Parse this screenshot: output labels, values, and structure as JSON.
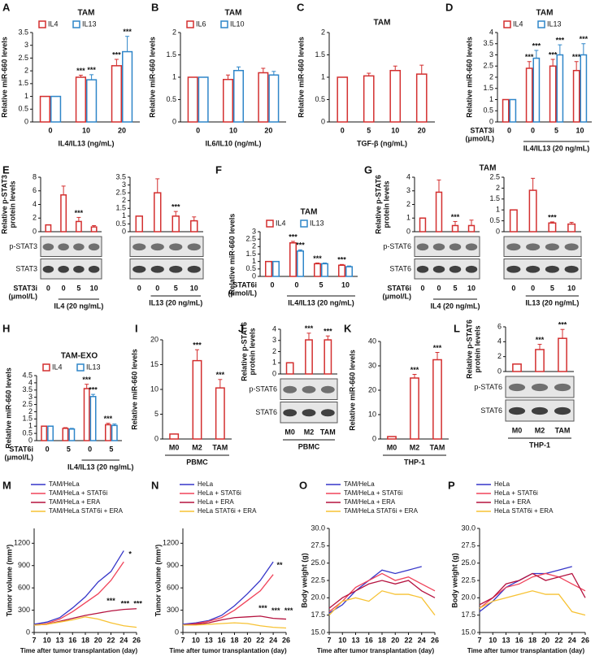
{
  "chart_data": [
    {
      "letter": "A",
      "title": "TAM",
      "type": "bar",
      "categories": [
        "0",
        "10",
        "20"
      ],
      "xlabel": "IL4/IL13  (ng/mL)",
      "ylabel": "Relative miR-660 levels",
      "ylim": [
        0,
        3.5
      ],
      "yticks": [
        0,
        0.5,
        1,
        1.5,
        2,
        2.5,
        3,
        3.5
      ],
      "series": [
        {
          "name": "IL4",
          "color": "#d32f2f",
          "values": [
            1,
            1.75,
            2.2
          ],
          "errors": [
            0,
            0.08,
            0.25
          ],
          "stars": [
            null,
            "***",
            "***"
          ]
        },
        {
          "name": "IL13",
          "color": "#2f86c9",
          "values": [
            1,
            1.65,
            2.75
          ],
          "errors": [
            0,
            0.2,
            0.6
          ],
          "stars": [
            null,
            "***",
            "***"
          ]
        }
      ]
    },
    {
      "letter": "B",
      "title": "TAM",
      "type": "bar",
      "categories": [
        "0",
        "10",
        "20"
      ],
      "xlabel": "IL6/IL10  (ng/mL)",
      "ylabel": "Relative miR-660 levels",
      "ylim": [
        0,
        2
      ],
      "yticks": [
        0,
        0.5,
        1,
        1.5,
        2
      ],
      "series": [
        {
          "name": "IL6",
          "color": "#d32f2f",
          "values": [
            1,
            0.95,
            1.1
          ],
          "errors": [
            0,
            0.1,
            0.1
          ]
        },
        {
          "name": "IL10",
          "color": "#2f86c9",
          "values": [
            1,
            1.15,
            1.05
          ],
          "errors": [
            0,
            0.08,
            0.08
          ]
        }
      ]
    },
    {
      "letter": "C",
      "title": "TAM",
      "type": "bar",
      "categories": [
        "0",
        "5",
        "10",
        "20"
      ],
      "xlabel": "TGF-β  (ng/mL)",
      "ylabel": "Relative miR-660 levels",
      "ylim": [
        0,
        2
      ],
      "yticks": [
        0,
        0.5,
        1,
        1.5,
        2
      ],
      "series": [
        {
          "color": "#d32f2f",
          "values": [
            1,
            1.03,
            1.15,
            1.07
          ],
          "errors": [
            0,
            0.06,
            0.1,
            0.2
          ]
        }
      ]
    },
    {
      "letter": "D",
      "title": "TAM",
      "type": "bar",
      "categories": [
        "0",
        "0",
        "5",
        "10"
      ],
      "row_label": [
        "STAT3i",
        "(μmol/L)"
      ],
      "group_label": "IL4/IL13 (20 ng/mL)",
      "ylabel": "Relative miR-660 levels",
      "ylim": [
        0,
        4
      ],
      "yticks": [
        0,
        0.5,
        1,
        1.5,
        2,
        2.5,
        3,
        3.5,
        4
      ],
      "series": [
        {
          "name": "IL4",
          "color": "#d32f2f",
          "values": [
            1,
            2.4,
            2.5,
            2.3
          ],
          "errors": [
            0,
            0.3,
            0.3,
            0.4
          ],
          "stars": [
            null,
            "***",
            "***",
            "***"
          ]
        },
        {
          "name": "IL13",
          "color": "#2f86c9",
          "values": [
            1,
            2.85,
            3.0,
            3.0
          ],
          "errors": [
            0,
            0.35,
            0.45,
            0.5
          ],
          "stars": [
            null,
            "***",
            "***",
            "***"
          ]
        }
      ]
    },
    {
      "letter": "E",
      "type": "bar",
      "categories": [
        "0",
        "0",
        "5",
        "10"
      ],
      "row_label": [
        "STAT3i",
        "(μmol/L)"
      ],
      "group_label": "IL4 (20 ng/mL)",
      "ylabel": [
        "Relative p-STAT3",
        "protein levels"
      ],
      "ylim": [
        0,
        8
      ],
      "yticks": [
        0,
        2,
        4,
        6,
        8
      ],
      "blot_labels": [
        "p-STAT3",
        "STAT3"
      ],
      "series": [
        {
          "color": "#d32f2f",
          "values": [
            1,
            5.4,
            1.5,
            0.7
          ],
          "errors": [
            0,
            1.3,
            0.6,
            0.2
          ],
          "stars": [
            null,
            null,
            "***",
            null
          ]
        }
      ]
    },
    {
      "type": "bar",
      "categories": [
        "0",
        "0",
        "5",
        "10"
      ],
      "group_label": "IL13 (20 ng/mL)",
      "ylim": [
        0,
        3.5
      ],
      "yticks": [
        0,
        0.5,
        1,
        1.5,
        2,
        2.5,
        3,
        3.5
      ],
      "series": [
        {
          "color": "#d32f2f",
          "values": [
            1,
            2.5,
            1.0,
            0.7
          ],
          "errors": [
            0,
            0.9,
            0.3,
            0.25
          ],
          "stars": [
            null,
            null,
            "***",
            null
          ]
        }
      ]
    },
    {
      "letter": "F",
      "title": "TAM",
      "type": "bar",
      "categories": [
        "0",
        "0",
        "5",
        "10"
      ],
      "row_label": [
        "STAT6i",
        "(μmol/L)"
      ],
      "group_label": "IL4/IL13 (20 ng/mL)",
      "ylabel": "Relative miR-660 levels",
      "ylim": [
        0,
        3
      ],
      "yticks": [
        0,
        0.5,
        1,
        1.5,
        2,
        2.5,
        3
      ],
      "series": [
        {
          "name": "IL4",
          "color": "#d32f2f",
          "values": [
            1,
            2.25,
            0.85,
            0.75
          ],
          "errors": [
            0,
            0.1,
            0.05,
            0.05
          ],
          "stars": [
            null,
            "***",
            "***",
            "***"
          ]
        },
        {
          "name": "IL13",
          "color": "#2f86c9",
          "values": [
            1,
            1.7,
            0.85,
            0.65
          ],
          "errors": [
            0,
            0.08,
            0.05,
            0.05
          ],
          "stars": [
            null,
            "***",
            null,
            null
          ]
        }
      ]
    },
    {
      "letter": "G",
      "title": "TAM",
      "type": "bar",
      "categories": [
        "0",
        "0",
        "5",
        "10"
      ],
      "row_label": [
        "STAT6i",
        "(μmol/L)"
      ],
      "group_label": "IL4 (20 ng/mL)",
      "ylabel": [
        "Relative p-STAT6",
        "protein levels"
      ],
      "ylim": [
        0,
        4
      ],
      "yticks": [
        0,
        1,
        2,
        3,
        4
      ],
      "blot_labels": [
        "p-STAT6",
        "STAT6"
      ],
      "series": [
        {
          "color": "#d32f2f",
          "values": [
            1,
            2.9,
            0.45,
            0.45
          ],
          "errors": [
            0,
            0.9,
            0.3,
            0.4
          ],
          "stars": [
            null,
            null,
            "***",
            null
          ]
        }
      ]
    },
    {
      "type": "bar",
      "categories": [
        "0",
        "0",
        "5",
        "10"
      ],
      "group_label": "IL13 (20 ng/mL)",
      "ylim": [
        0,
        2.5
      ],
      "yticks": [
        0,
        0.5,
        1,
        1.5,
        2,
        2.5
      ],
      "series": [
        {
          "color": "#d32f2f",
          "values": [
            1,
            1.9,
            0.4,
            0.35
          ],
          "errors": [
            0,
            0.55,
            0.05,
            0.08
          ],
          "stars": [
            null,
            null,
            "***",
            null
          ]
        }
      ]
    },
    {
      "letter": "H",
      "title": "TAM-EXO",
      "type": "bar",
      "categories": [
        "0",
        "5",
        "0",
        "5"
      ],
      "row_label": [
        "STAT6i",
        "(μmol/L)"
      ],
      "group_label": "IL4/IL13 (20 ng/mL)",
      "ylabel": "Relative miR-660 levels",
      "ylim": [
        0,
        4.5
      ],
      "yticks": [
        0,
        0.5,
        1,
        1.5,
        2,
        2.5,
        3,
        3.5,
        4,
        4.5
      ],
      "series": [
        {
          "name": "IL4",
          "color": "#d32f2f",
          "values": [
            1,
            0.85,
            3.6,
            1.1
          ],
          "errors": [
            0,
            0.05,
            0.3,
            0.1
          ],
          "stars": [
            null,
            null,
            "***",
            "***"
          ]
        },
        {
          "name": "IL13",
          "color": "#2f86c9",
          "values": [
            1,
            0.8,
            3.05,
            1.05
          ],
          "errors": [
            0,
            0.05,
            0.15,
            0.1
          ],
          "stars": [
            null,
            null,
            "***",
            null
          ]
        }
      ]
    },
    {
      "letter": "I",
      "type": "bar",
      "categories": [
        "M0",
        "M2",
        "TAM"
      ],
      "group_label": "PBMC",
      "ylabel": "Relative miR-660 levels",
      "ylim": [
        0,
        20
      ],
      "yticks": [
        0,
        5,
        10,
        15,
        20
      ],
      "series": [
        {
          "color": "#d32f2f",
          "values": [
            1,
            15.8,
            10.3
          ],
          "errors": [
            0,
            2.2,
            1.7
          ],
          "stars": [
            null,
            "***",
            "***"
          ]
        }
      ]
    },
    {
      "letter": "J",
      "type": "bar",
      "categories": [
        "M0",
        "M2",
        "TAM"
      ],
      "group_label": "PBMC",
      "ylabel": [
        "Relative p-STAT6",
        "protein levels"
      ],
      "ylim": [
        0,
        4
      ],
      "yticks": [
        0,
        1,
        2,
        3,
        4
      ],
      "blot_labels": [
        "p-STAT6",
        "STAT6"
      ],
      "series": [
        {
          "color": "#d32f2f",
          "values": [
            1,
            3.05,
            3.05
          ],
          "errors": [
            0,
            0.6,
            0.35
          ],
          "stars": [
            null,
            "***",
            "***"
          ]
        }
      ]
    },
    {
      "letter": "K",
      "type": "bar",
      "categories": [
        "M0",
        "M2",
        "TAM"
      ],
      "group_label": "THP-1",
      "ylabel": "Relative miR-660 levels",
      "ylim": [
        0,
        40
      ],
      "yticks": [
        0,
        10,
        20,
        30,
        40
      ],
      "series": [
        {
          "color": "#d32f2f",
          "values": [
            1,
            25,
            32.5
          ],
          "errors": [
            0,
            1.5,
            3
          ],
          "stars": [
            null,
            "***",
            "***"
          ]
        }
      ]
    },
    {
      "letter": "L",
      "type": "bar",
      "categories": [
        "M0",
        "M2",
        "TAM"
      ],
      "group_label": "THP-1",
      "ylabel": [
        "Relative p-STAT6",
        "protein levels"
      ],
      "ylim": [
        0,
        6
      ],
      "yticks": [
        0,
        2,
        4,
        6
      ],
      "blot_labels": [
        "p-STAT6",
        "STAT6"
      ],
      "series": [
        {
          "color": "#d32f2f",
          "values": [
            1,
            2.95,
            4.45
          ],
          "errors": [
            0,
            0.7,
            1.2
          ],
          "stars": [
            null,
            "***",
            "***"
          ]
        }
      ]
    },
    {
      "letter": "M",
      "type": "line",
      "categories": [
        "7",
        "10",
        "13",
        "16",
        "18",
        "20",
        "22",
        "24",
        "26"
      ],
      "xlabel": "Time after tumor transplantation (day)",
      "ylabel": "Tumor volume (mm³)",
      "ylim": [
        0,
        1400
      ],
      "yticks": [
        0,
        300,
        600,
        900,
        1200
      ],
      "annotations": [
        "*",
        "***",
        "***",
        "***"
      ],
      "series": [
        {
          "name": "TAM/HeLa",
          "color": "#3535c8",
          "values": [
            110,
            140,
            200,
            330,
            480,
            680,
            820,
            1100,
            null
          ]
        },
        {
          "name": "TAM/HeLa + STAT6i",
          "color": "#f0435a",
          "values": [
            100,
            120,
            180,
            280,
            400,
            520,
            700,
            950,
            null
          ]
        },
        {
          "name": "TAM/HeLa + ERA",
          "color": "#b5123f",
          "values": [
            100,
            110,
            150,
            190,
            230,
            260,
            290,
            310,
            320
          ]
        },
        {
          "name": "TAM/HeLa STAT6i + ERA",
          "color": "#f7c234",
          "values": [
            100,
            110,
            140,
            170,
            210,
            180,
            130,
            90,
            70
          ]
        }
      ]
    },
    {
      "letter": "N",
      "type": "line",
      "categories": [
        "7",
        "10",
        "13",
        "16",
        "18",
        "20",
        "22",
        "24",
        "26"
      ],
      "xlabel": "Time after tumor transplantation (day)",
      "ylabel": "Tumor volume (mm³)",
      "ylim": [
        0,
        1400
      ],
      "yticks": [
        0,
        300,
        600,
        900,
        1200
      ],
      "annotations": [
        "**",
        "***",
        "***",
        "***"
      ],
      "series": [
        {
          "name": "HeLa",
          "color": "#3535c8",
          "values": [
            110,
            130,
            160,
            230,
            360,
            520,
            700,
            950,
            null
          ]
        },
        {
          "name": "HeLa + STAT6i",
          "color": "#f0435a",
          "values": [
            100,
            120,
            150,
            200,
            300,
            430,
            560,
            780,
            null
          ]
        },
        {
          "name": "HeLa + ERA",
          "color": "#b5123f",
          "values": [
            100,
            110,
            130,
            170,
            200,
            210,
            220,
            190,
            180
          ]
        },
        {
          "name": "HeLa STAT6i + ERA",
          "color": "#f7c234",
          "values": [
            100,
            100,
            110,
            120,
            130,
            120,
            90,
            70,
            60
          ]
        }
      ]
    },
    {
      "letter": "O",
      "type": "line",
      "categories": [
        "7",
        "10",
        "13",
        "16",
        "18",
        "20",
        "22",
        "24",
        "26"
      ],
      "xlabel": "Time after tumor transplantation (day)",
      "ylabel": "Body weight (g)",
      "ylim": [
        15,
        30
      ],
      "yticks": [
        {
          "value": 15,
          "label": "15.0"
        },
        {
          "value": 17.5,
          "label": "17.5"
        },
        {
          "value": 20,
          "label": "20.0"
        },
        {
          "value": 22.5,
          "label": "22.5"
        },
        {
          "value": 25,
          "label": "25.0"
        },
        {
          "value": 27.5,
          "label": "27.5"
        },
        {
          "value": 30,
          "label": "30.0"
        }
      ],
      "series": [
        {
          "name": "TAM/HeLa",
          "color": "#3535c8",
          "values": [
            17.8,
            19,
            21,
            22.5,
            24,
            23.5,
            24,
            24.5,
            null
          ]
        },
        {
          "name": "TAM/HeLa + STAT6i",
          "color": "#f0435a",
          "values": [
            18,
            19.5,
            21.5,
            22.5,
            23.5,
            22.5,
            23,
            22,
            21
          ]
        },
        {
          "name": "TAM/HeLa + ERA",
          "color": "#b5123f",
          "values": [
            18.5,
            20,
            21,
            22,
            22.5,
            22,
            22.5,
            21,
            20
          ]
        },
        {
          "name": "TAM/HeLa STAT6i + ERA",
          "color": "#f7c234",
          "values": [
            17.5,
            19.5,
            20,
            19.5,
            21,
            20.5,
            20.5,
            20,
            17.5
          ]
        }
      ]
    },
    {
      "letter": "P",
      "type": "line",
      "categories": [
        "7",
        "10",
        "13",
        "16",
        "18",
        "20",
        "22",
        "24",
        "26"
      ],
      "xlabel": "Time after tumor transplantation (day)",
      "ylabel": "Body weight (g)",
      "ylim": [
        15,
        30
      ],
      "yticks": [
        {
          "value": 15,
          "label": "15.0"
        },
        {
          "value": 17.5,
          "label": "17.5"
        },
        {
          "value": 20,
          "label": "20.0"
        },
        {
          "value": 22.5,
          "label": "22.5"
        },
        {
          "value": 25,
          "label": "25.0"
        },
        {
          "value": 27.5,
          "label": "27.5"
        },
        {
          "value": 30,
          "label": "30.0"
        }
      ],
      "series": [
        {
          "name": "HeLa",
          "color": "#3535c8",
          "values": [
            18,
            19.5,
            21.5,
            22.5,
            23.5,
            23.5,
            24,
            24.5,
            null
          ]
        },
        {
          "name": "HeLa + STAT6i",
          "color": "#f0435a",
          "values": [
            18.5,
            20,
            21.5,
            22,
            23,
            23.5,
            23,
            22,
            21
          ]
        },
        {
          "name": "HeLa + ERA",
          "color": "#b5123f",
          "values": [
            19,
            20,
            22,
            22.5,
            23.5,
            22.5,
            23,
            23.5,
            20
          ]
        },
        {
          "name": "HeLa STAT6i + ERA",
          "color": "#f7c234",
          "values": [
            18.5,
            19.5,
            20,
            20.5,
            21,
            20.5,
            20.5,
            18,
            17.5
          ]
        }
      ]
    }
  ]
}
